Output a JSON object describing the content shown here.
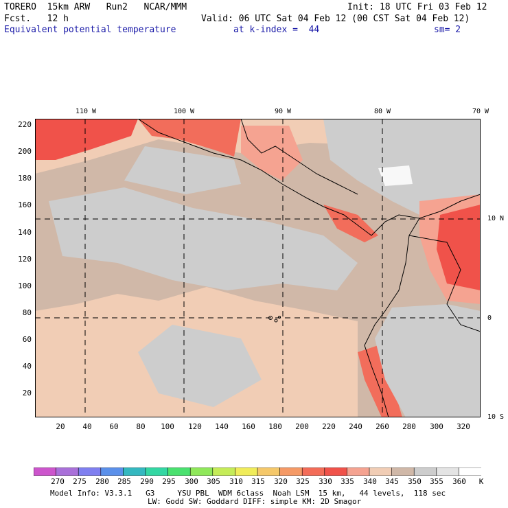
{
  "header": {
    "model": "TORERO  15km ARW   Run2   NCAR/MMM",
    "init": "Init: 18 UTC Fri 03 Feb 12",
    "fcst": "Fcst.   12 h",
    "valid": "Valid: 06 UTC Sat 04 Feb 12 (00 CST Sat 04 Feb 12)",
    "field": "Equivalent potential temperature",
    "level": "at k-index =  44",
    "smoothing": "sm= 2"
  },
  "map": {
    "longitude_labels": [
      "110 W",
      "100 W",
      "90 W",
      "80 W",
      "70 W"
    ],
    "latitude_labels": [
      "10 N",
      "0",
      "10 S"
    ],
    "x_ticks": [
      "20",
      "40",
      "60",
      "80",
      "100",
      "120",
      "140",
      "160",
      "180",
      "200",
      "220",
      "240",
      "260",
      "280",
      "300",
      "320"
    ],
    "y_ticks": [
      "20",
      "40",
      "60",
      "80",
      "100",
      "120",
      "140",
      "160",
      "180",
      "200",
      "220"
    ],
    "colors": {
      "ocean_main": "#d0b8a8",
      "ocean_light": "#f1cdb5",
      "ocean_grey": "#cdcdcd",
      "warm_1": "#f5a391",
      "warm_2": "#f26d5b",
      "warm_3": "#f0524a",
      "white": "#f8f8f8"
    }
  },
  "colorbar": {
    "values": [
      "270",
      "275",
      "280",
      "285",
      "290",
      "295",
      "300",
      "305",
      "310",
      "315",
      "320",
      "325",
      "330",
      "335",
      "340",
      "345",
      "350",
      "355",
      "360"
    ],
    "unit": "K",
    "colors": [
      "#cc55cc",
      "#a970d9",
      "#7f7ff0",
      "#5b90ea",
      "#34b8c0",
      "#33d7a3",
      "#4ae16f",
      "#8fe85a",
      "#c5ec58",
      "#f0ec5a",
      "#f5c86a",
      "#f59a66",
      "#f36c58",
      "#f0524a",
      "#f5a391",
      "#f1cdb5",
      "#d0b8a8",
      "#cdcdcd",
      "#e4e4e4",
      "#ffffff"
    ]
  },
  "footer": {
    "line1": "Model Info: V3.3.1   G3     YSU PBL  WDM 6class  Noah LSM  15 km,   44 levels,  118 sec",
    "line2": "LW: Godd SW: Goddard DIFF: simple KM: 2D Smagor"
  }
}
